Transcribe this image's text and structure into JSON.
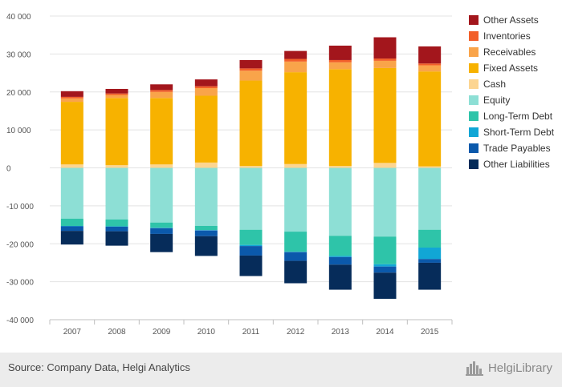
{
  "chart_data": {
    "type": "bar",
    "stacked": true,
    "categories": [
      "2007",
      "2008",
      "2009",
      "2010",
      "2011",
      "2012",
      "2013",
      "2014",
      "2015"
    ],
    "y_ticks": [
      "40 000",
      "30 000",
      "20 000",
      "10 000",
      "0",
      "-10 000",
      "-20 000",
      "-30 000",
      "-40 000"
    ],
    "ylim": [
      -40000,
      40000
    ],
    "grid": true,
    "legend_position": "right",
    "series": [
      {
        "name": "Other Assets",
        "color": "#a3161c",
        "values": [
          1500,
          1200,
          1500,
          1800,
          2200,
          2100,
          3800,
          5600,
          4500
        ]
      },
      {
        "name": "Inventories",
        "color": "#f25f29",
        "values": [
          400,
          400,
          500,
          500,
          600,
          700,
          600,
          600,
          500
        ]
      },
      {
        "name": "Receivables",
        "color": "#f9a44a",
        "values": [
          900,
          800,
          1600,
          2000,
          2600,
          2800,
          1800,
          1900,
          1600
        ]
      },
      {
        "name": "Fixed Assets",
        "color": "#f7b200",
        "values": [
          16500,
          17700,
          17500,
          17600,
          22500,
          24200,
          25500,
          25000,
          25000
        ]
      },
      {
        "name": "Cash",
        "color": "#fcd591",
        "values": [
          900,
          700,
          900,
          1400,
          500,
          1000,
          500,
          1300,
          400
        ]
      },
      {
        "name": "Equity",
        "color": "#8ddfd5",
        "values": [
          -13400,
          -13600,
          -14400,
          -15300,
          -16300,
          -16800,
          -17900,
          -18100,
          -16300
        ]
      },
      {
        "name": "Long-Term Debt",
        "color": "#2ec4a9",
        "values": [
          -1900,
          -1800,
          -1400,
          -1100,
          -4000,
          -5300,
          -5300,
          -7300,
          -4700
        ]
      },
      {
        "name": "Short-Term Debt",
        "color": "#11a6d5",
        "values": [
          -100,
          -100,
          -100,
          -100,
          -300,
          -100,
          -300,
          -600,
          -3000
        ]
      },
      {
        "name": "Trade Payables",
        "color": "#0b59ab",
        "values": [
          -1200,
          -1200,
          -1500,
          -1500,
          -2500,
          -2300,
          -2000,
          -1600,
          -1000
        ]
      },
      {
        "name": "Other Liabilities",
        "color": "#062c5a",
        "values": [
          -3600,
          -3800,
          -4800,
          -5200,
          -5400,
          -5900,
          -6600,
          -6900,
          -7100
        ]
      }
    ]
  },
  "footer": {
    "source": "Source: Company Data, Helgi Analytics",
    "brand": "HelgiLibrary"
  }
}
